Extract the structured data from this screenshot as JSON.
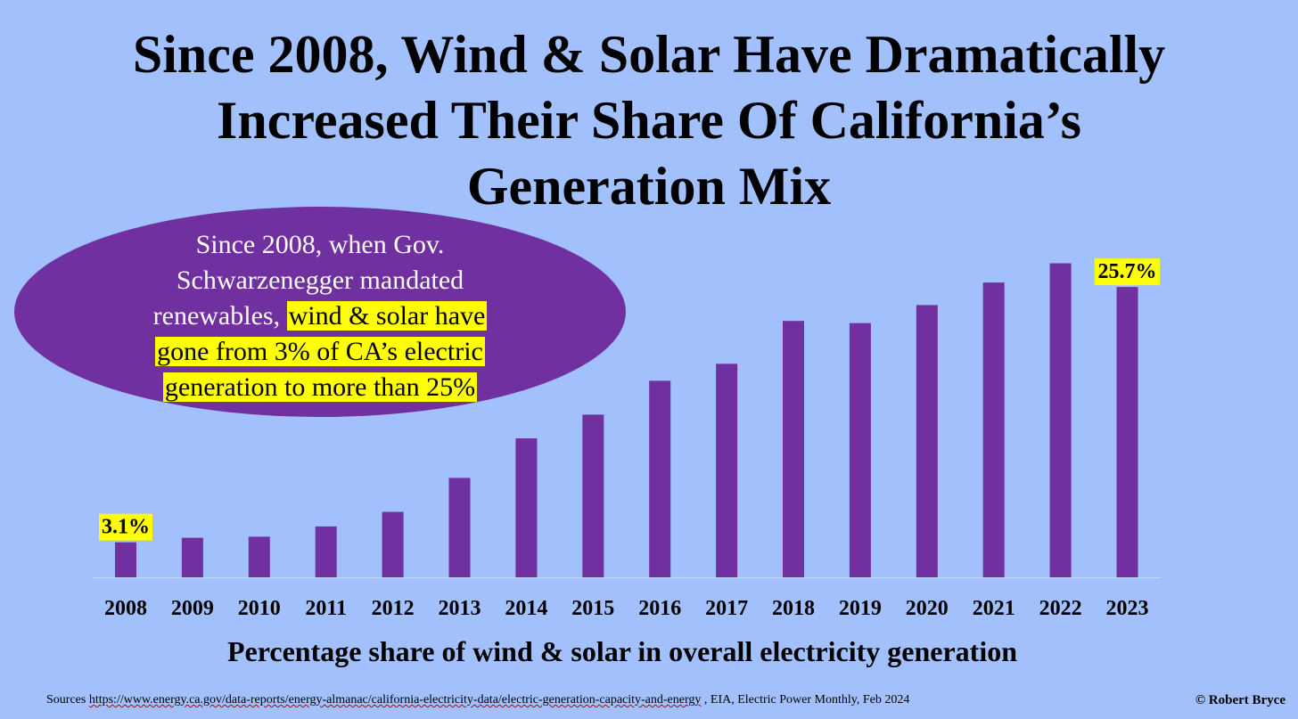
{
  "title_lines": [
    "Since 2008, Wind & Solar Have Dramatically",
    "Increased Their Share Of California’s",
    "Generation Mix"
  ],
  "callout": {
    "line1": "Since 2008, when Gov.",
    "line2": "Schwarzenegger mandated",
    "line3_plain": "renewables, ",
    "line3_highlight": "wind & solar have",
    "line4_highlight": "gone from 3% of CA’s electric",
    "line5_highlight": "generation to more than 25%"
  },
  "chart_data": {
    "type": "bar",
    "categories": [
      "2008",
      "2009",
      "2010",
      "2011",
      "2012",
      "2013",
      "2014",
      "2015",
      "2016",
      "2017",
      "2018",
      "2019",
      "2020",
      "2021",
      "2022",
      "2023"
    ],
    "values": [
      3.1,
      3.5,
      3.6,
      4.5,
      5.8,
      8.8,
      12.3,
      14.4,
      17.4,
      18.9,
      22.7,
      22.5,
      24.1,
      26.1,
      27.8,
      25.7
    ],
    "ylim": [
      0,
      30
    ],
    "xlabel": "Percentage share of wind & solar in overall electricity generation",
    "ylabel": "",
    "annotations": [
      {
        "category": "2008",
        "text": "3.1%"
      },
      {
        "category": "2023",
        "text": "25.7%"
      }
    ],
    "grid": false,
    "legend": "none"
  },
  "colors": {
    "background": "#a1c0fc",
    "bar": "#7030a0",
    "highlight": "#ffff00",
    "callout_fill": "#7030a0"
  },
  "sources": {
    "prefix": "Sources",
    "url": "https://www.energy.ca.gov/data-reports/energy-almanac/california-electricity-data/electric-generation-capacity-and-energy",
    "suffix": " , EIA, Electric Power Monthly, Feb 2024"
  },
  "copyright": "© Robert Bryce"
}
